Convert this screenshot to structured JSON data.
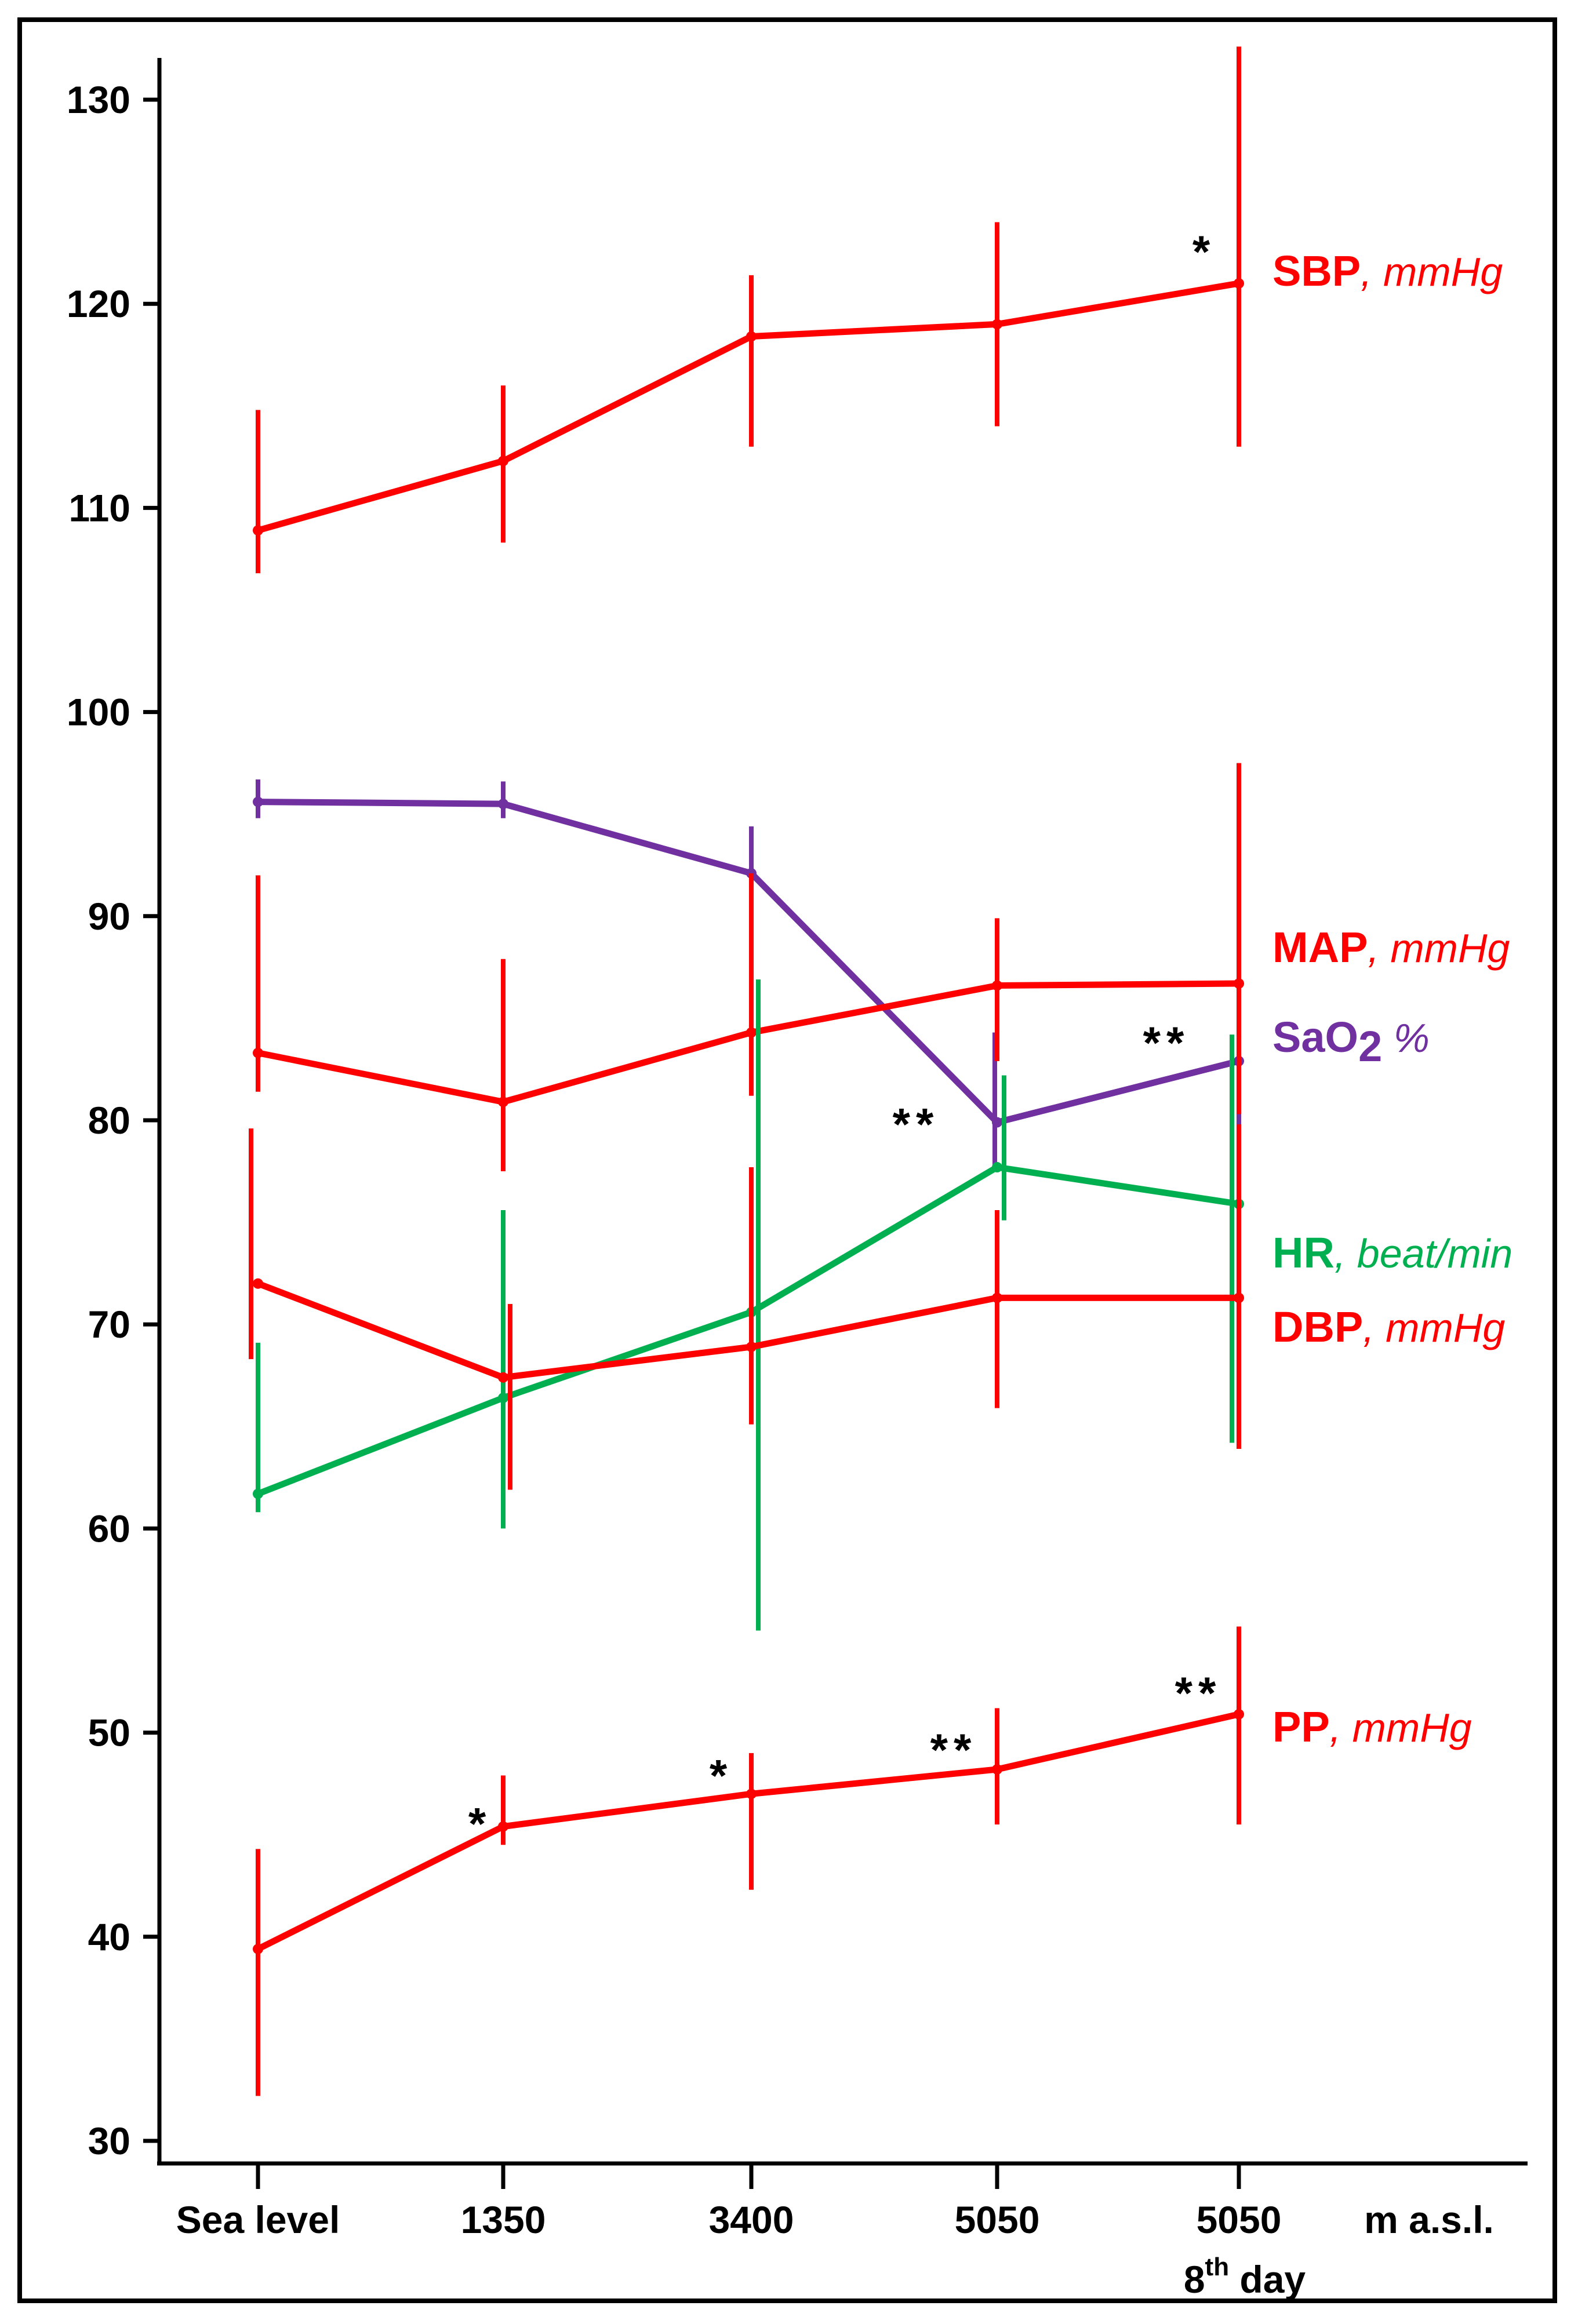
{
  "chart_data": {
    "type": "line",
    "title": "",
    "xlabel": "m a.s.l.",
    "ylabel": "",
    "ylim": [
      30,
      131
    ],
    "y_ticks": [
      30,
      40,
      50,
      60,
      70,
      80,
      90,
      100,
      110,
      120,
      130
    ],
    "categories": [
      {
        "label": "Sea level",
        "sub": ""
      },
      {
        "label": "1350",
        "sub": ""
      },
      {
        "label": "3400",
        "sub": ""
      },
      {
        "label": "5050",
        "sub": ""
      },
      {
        "label": "5050",
        "sub": "8",
        "sub_sup": "th",
        "sub_rest": " day"
      }
    ],
    "series": [
      {
        "id": "sbp",
        "name": "SBP",
        "unit": ", mmHg",
        "color": "#ff0000",
        "values": [
          108.9,
          112.3,
          118.4,
          119.0,
          121.0
        ],
        "err_low": [
          106.8,
          108.3,
          113.0,
          114.0,
          113.0
        ],
        "err_high": [
          114.8,
          116.0,
          121.4,
          124.0,
          132.6
        ]
      },
      {
        "id": "sao2",
        "name": "SaO",
        "name_sub": "2",
        "unit": " %",
        "color": "#7030a0",
        "values": [
          95.6,
          95.5,
          92.1,
          79.9,
          82.9
        ],
        "err_low": [
          94.8,
          94.8,
          89.0,
          77.5,
          77.8
        ],
        "err_high": [
          96.7,
          96.6,
          94.4,
          84.3,
          89.4
        ]
      },
      {
        "id": "map",
        "name": "MAP",
        "unit": ", mmHg",
        "color": "#ff0000",
        "values": [
          83.3,
          80.9,
          84.3,
          86.6,
          86.7
        ],
        "err_low": [
          81.4,
          77.5,
          81.2,
          82.9,
          80.3
        ],
        "err_high": [
          92.0,
          87.9,
          92.1,
          89.9,
          97.5
        ]
      },
      {
        "id": "hr",
        "name": "HR",
        "unit": ", beat/min",
        "color": "#00b050",
        "values": [
          61.7,
          66.4,
          70.6,
          77.7,
          75.9
        ],
        "err_low": [
          60.8,
          60.0,
          55.0,
          75.1,
          64.2
        ],
        "err_high": [
          69.1,
          75.6,
          86.9,
          82.2,
          84.2
        ]
      },
      {
        "id": "dbp",
        "name": "DBP",
        "unit": ", mmHg",
        "color": "#ff0000",
        "values": [
          72.0,
          67.4,
          68.9,
          71.3,
          71.3
        ],
        "err_low": [
          68.3,
          61.9,
          65.1,
          65.9,
          63.9
        ],
        "err_high": [
          79.6,
          71.0,
          77.7,
          75.6,
          79.8
        ]
      },
      {
        "id": "pp",
        "name": "PP",
        "unit": ", mmHg",
        "color": "#ff0000",
        "values": [
          39.4,
          45.4,
          47.0,
          48.2,
          50.9
        ],
        "err_low": [
          32.2,
          44.5,
          42.3,
          45.5,
          45.5
        ],
        "err_high": [
          44.3,
          47.9,
          49.0,
          51.2,
          55.2
        ]
      }
    ],
    "annotations": [
      {
        "text": "*",
        "series": "sbp",
        "index": 4
      },
      {
        "text": "**",
        "series": "sao2",
        "index": 3
      },
      {
        "text": "**",
        "series": "sao2",
        "index": 4
      },
      {
        "text": "*",
        "series": "pp",
        "index": 1
      },
      {
        "text": "*",
        "series": "pp",
        "index": 2
      },
      {
        "text": "**",
        "series": "pp",
        "index": 3
      },
      {
        "text": "**",
        "series": "pp",
        "index": 4
      }
    ]
  }
}
